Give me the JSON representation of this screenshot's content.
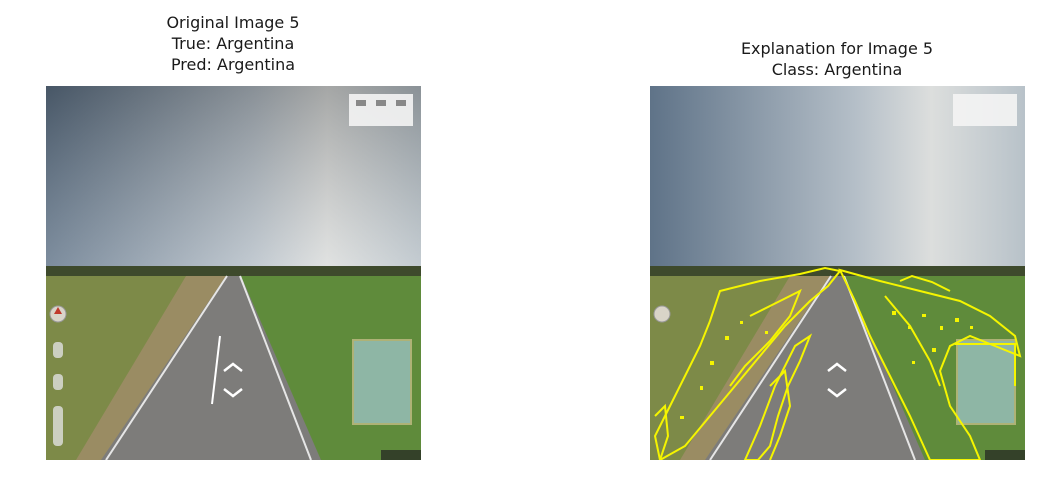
{
  "left_panel": {
    "title_line1": "Original Image 5",
    "title_line2": "True: Argentina",
    "title_line3": "Pred: Argentina"
  },
  "right_panel": {
    "title_line1": "Explanation for Image 5",
    "title_line2": "Class: Argentina"
  },
  "colors": {
    "sky_top": "#6f8296",
    "sky_mid": "#a9b6c2",
    "sky_haze": "#d6dadb",
    "grass_left": "#7f8b4a",
    "grass_right": "#5f8a3a",
    "road": "#7c7b78",
    "explanation_outline": "#f5f500"
  }
}
